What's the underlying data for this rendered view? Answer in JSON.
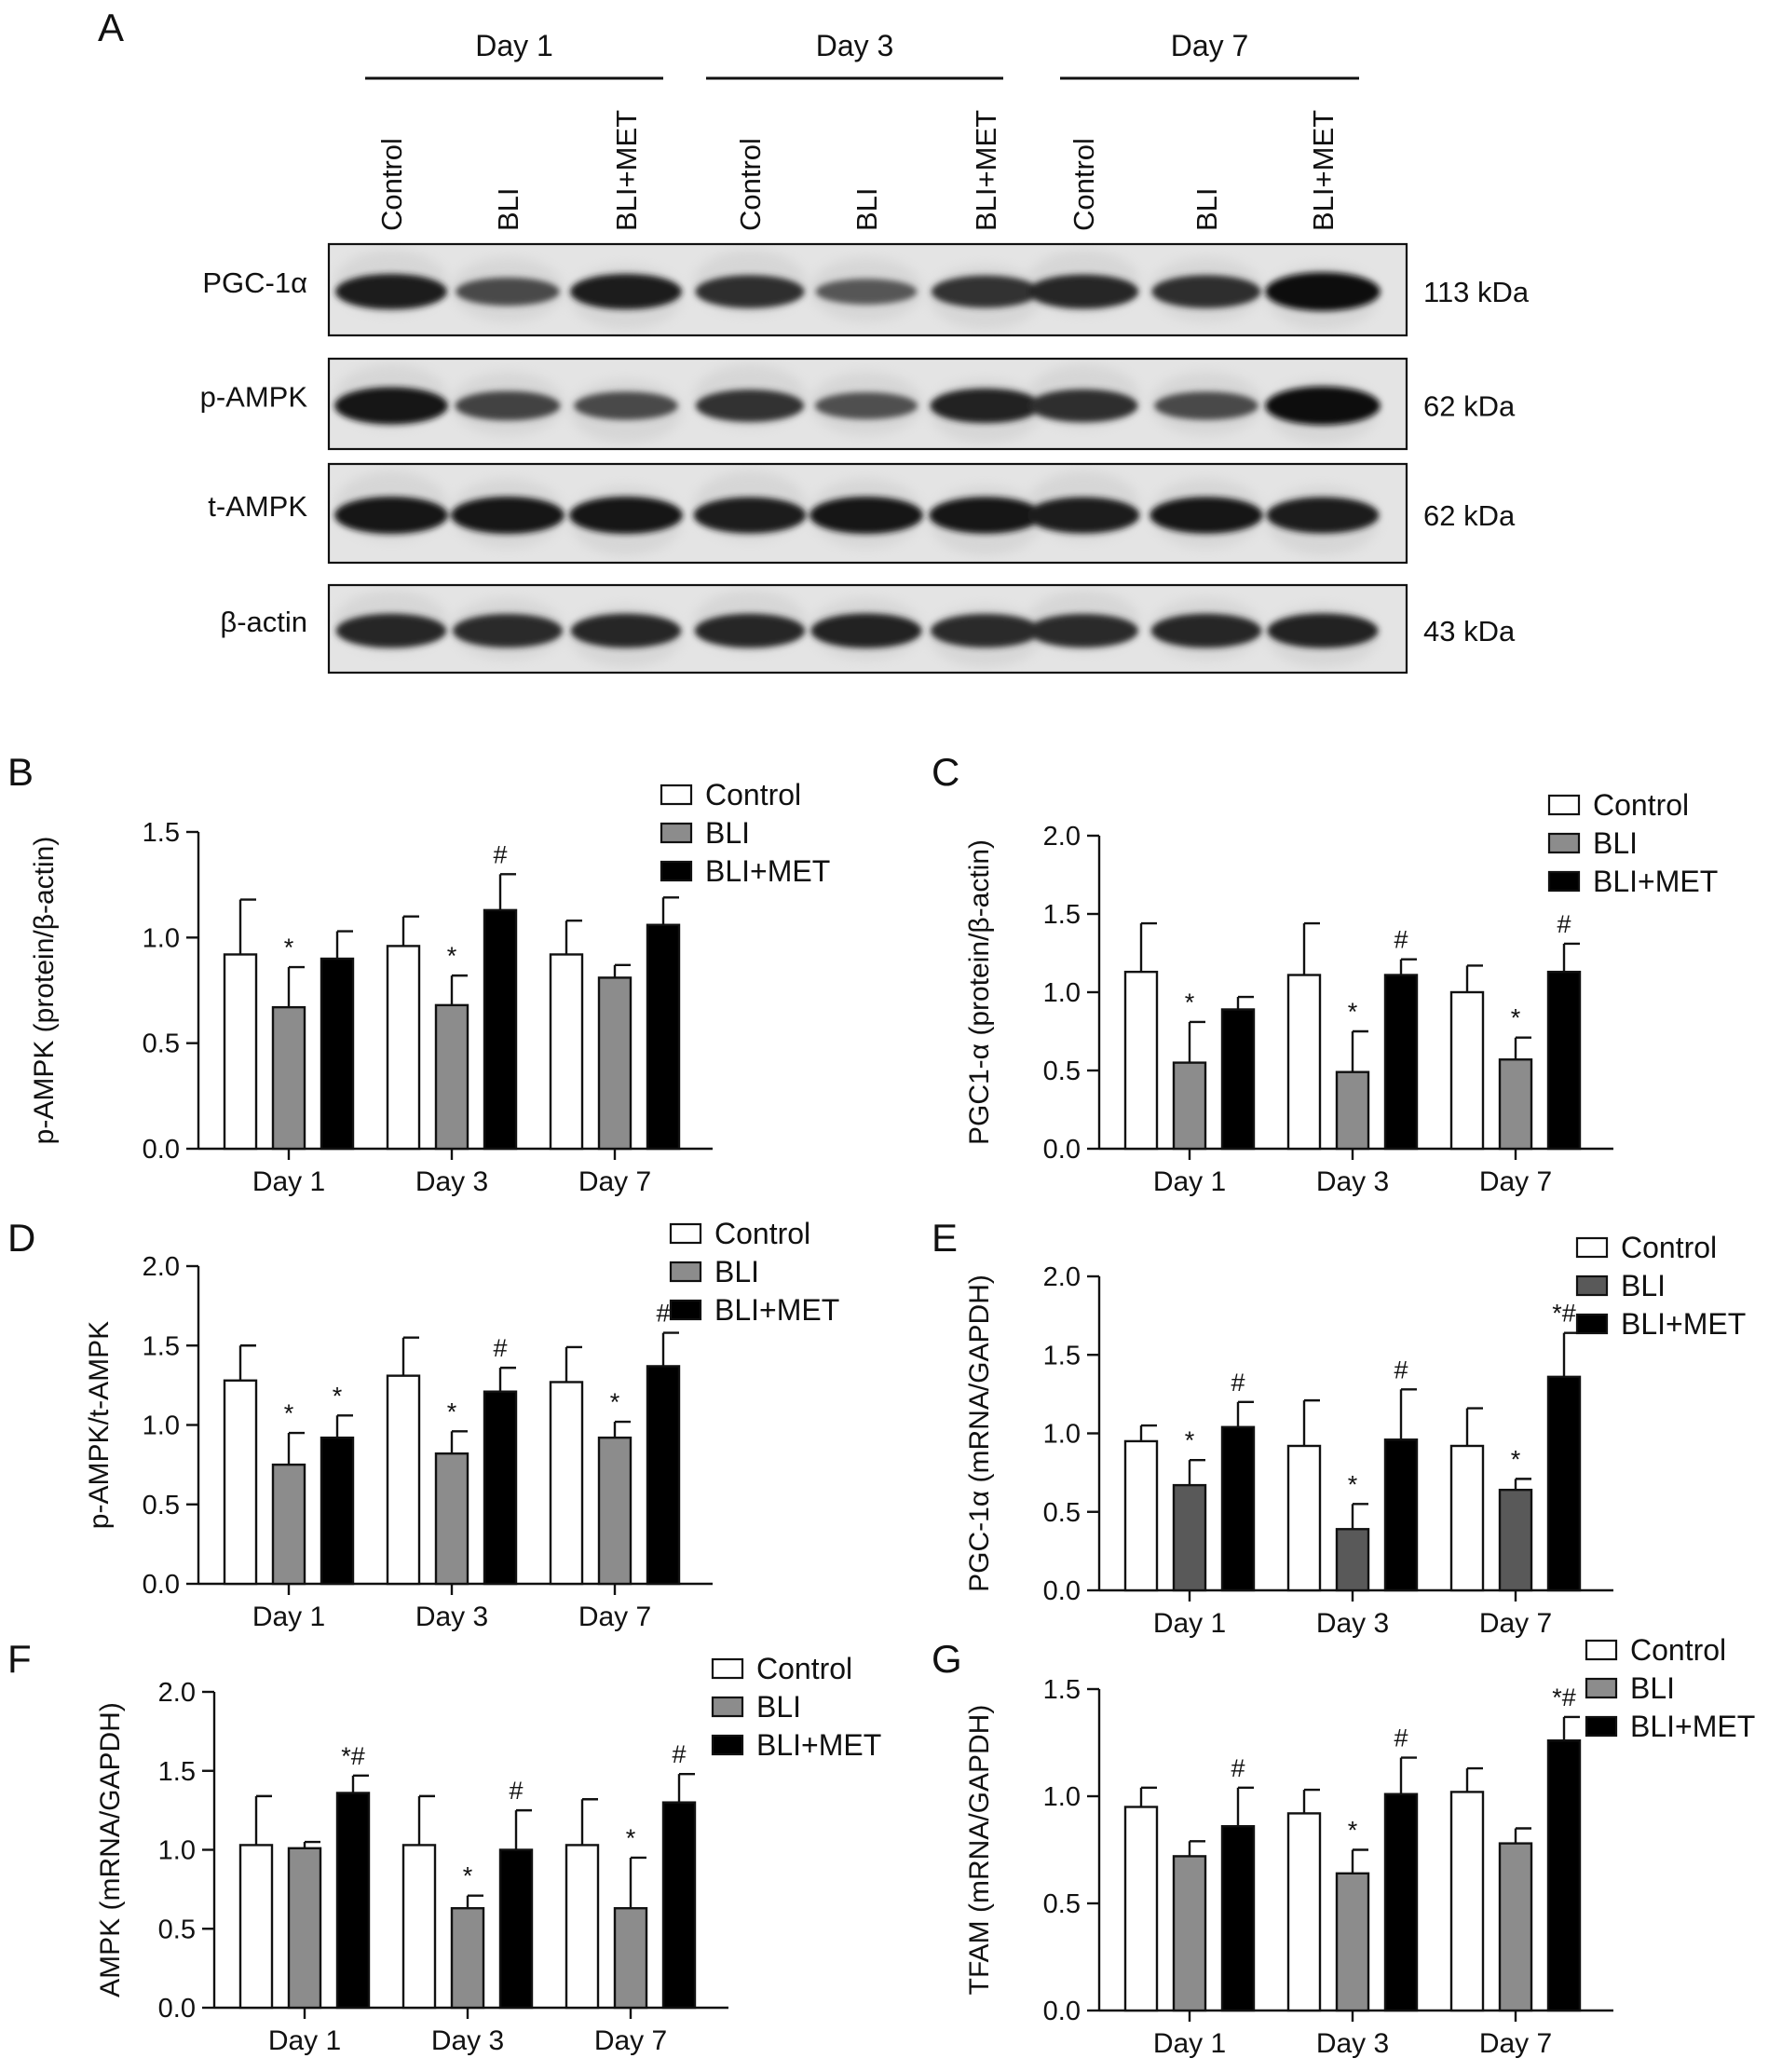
{
  "blot": {
    "panel_letter": "A",
    "groups": [
      {
        "label": "Day 1",
        "lanes": [
          "Control",
          "BLI",
          "BLI+MET"
        ]
      },
      {
        "label": "Day 3",
        "lanes": [
          "Control",
          "BLI",
          "BLI+MET"
        ]
      },
      {
        "label": "Day 7",
        "lanes": [
          "Control",
          "BLI",
          "BLI+MET"
        ]
      }
    ],
    "rows": [
      {
        "protein": "PGC-1α",
        "size": "113 kDa",
        "band_intensity": [
          0.85,
          0.55,
          0.85,
          0.75,
          0.45,
          0.72,
          0.8,
          0.75,
          0.98
        ]
      },
      {
        "protein": "p-AMPK",
        "size": "62 kDa",
        "band_intensity": [
          0.92,
          0.6,
          0.55,
          0.72,
          0.5,
          0.82,
          0.75,
          0.55,
          0.98
        ]
      },
      {
        "protein": "t-AMPK",
        "size": "62 kDa",
        "band_intensity": [
          0.92,
          0.92,
          0.92,
          0.88,
          0.92,
          0.9,
          0.88,
          0.9,
          0.88
        ]
      },
      {
        "protein": "β-actin",
        "size": "43 kDa",
        "band_intensity": [
          0.8,
          0.78,
          0.8,
          0.8,
          0.82,
          0.78,
          0.78,
          0.8,
          0.82
        ]
      }
    ]
  },
  "legend_labels": [
    "Control",
    "BLI",
    "BLI+MET"
  ],
  "colors": {
    "control": "#ffffff",
    "bli": "#8c8c8c",
    "bli_dark": "#595959",
    "bli_met": "#000000",
    "axis": "#111111"
  },
  "chart_data": [
    {
      "panel": "B",
      "type": "bar",
      "ylabel": "p-AMPK (protein/β-actin)",
      "categories": [
        "Day 1",
        "Day 3",
        "Day 7"
      ],
      "ylim": [
        0,
        1.5
      ],
      "yticks": [
        "0.0",
        "0.5",
        "1.0",
        "1.5"
      ],
      "legend": "right",
      "series": [
        {
          "name": "Control",
          "values": [
            0.92,
            0.96,
            0.92
          ],
          "errors": [
            0.26,
            0.14,
            0.16
          ],
          "marks": [
            "",
            "",
            ""
          ]
        },
        {
          "name": "BLI",
          "values": [
            0.67,
            0.68,
            0.81
          ],
          "errors": [
            0.19,
            0.14,
            0.06
          ],
          "marks": [
            "*",
            "*",
            ""
          ]
        },
        {
          "name": "BLI+MET",
          "values": [
            0.9,
            1.13,
            1.06
          ],
          "errors": [
            0.13,
            0.17,
            0.13
          ],
          "marks": [
            "",
            "#",
            ""
          ]
        }
      ]
    },
    {
      "panel": "C",
      "type": "bar",
      "ylabel": "PGC1-α (protein/β-actin)",
      "categories": [
        "Day 1",
        "Day 3",
        "Day 7"
      ],
      "ylim": [
        0,
        2.0
      ],
      "yticks": [
        "0.0",
        "0.5",
        "1.0",
        "1.5",
        "2.0"
      ],
      "legend": "right",
      "series": [
        {
          "name": "Control",
          "values": [
            1.13,
            1.11,
            1.0
          ],
          "errors": [
            0.31,
            0.33,
            0.17
          ],
          "marks": [
            "",
            "",
            ""
          ]
        },
        {
          "name": "BLI",
          "values": [
            0.55,
            0.49,
            0.57
          ],
          "errors": [
            0.26,
            0.26,
            0.14
          ],
          "marks": [
            "*",
            "*",
            "*"
          ]
        },
        {
          "name": "BLI+MET",
          "values": [
            0.89,
            1.11,
            1.13
          ],
          "errors": [
            0.08,
            0.1,
            0.18
          ],
          "marks": [
            "",
            "#",
            "#"
          ]
        }
      ]
    },
    {
      "panel": "D",
      "type": "bar",
      "ylabel": "p-AMPK/t-AMPK",
      "categories": [
        "Day 1",
        "Day 3",
        "Day 7"
      ],
      "ylim": [
        0,
        2.0
      ],
      "yticks": [
        "0.0",
        "0.5",
        "1.0",
        "1.5",
        "2.0"
      ],
      "legend": "right",
      "series": [
        {
          "name": "Control",
          "values": [
            1.28,
            1.31,
            1.27
          ],
          "errors": [
            0.22,
            0.24,
            0.22
          ],
          "marks": [
            "",
            "",
            ""
          ]
        },
        {
          "name": "BLI",
          "values": [
            0.75,
            0.82,
            0.92
          ],
          "errors": [
            0.2,
            0.14,
            0.1
          ],
          "marks": [
            "*",
            "*",
            "*"
          ]
        },
        {
          "name": "BLI+MET",
          "values": [
            0.92,
            1.21,
            1.37
          ],
          "errors": [
            0.14,
            0.15,
            0.21
          ],
          "marks": [
            "*",
            "#",
            "#"
          ]
        }
      ]
    },
    {
      "panel": "E",
      "type": "bar",
      "ylabel": "PGC-1α (mRNA/GAPDH)",
      "categories": [
        "Day 1",
        "Day 3",
        "Day 7"
      ],
      "ylim": [
        0,
        2.0
      ],
      "yticks": [
        "0.0",
        "0.5",
        "1.0",
        "1.5",
        "2.0"
      ],
      "legend": "right",
      "series": [
        {
          "name": "Control",
          "values": [
            0.95,
            0.92,
            0.92
          ],
          "errors": [
            0.1,
            0.29,
            0.24
          ],
          "marks": [
            "",
            "",
            ""
          ]
        },
        {
          "name": "BLI",
          "values": [
            0.67,
            0.39,
            0.64
          ],
          "errors": [
            0.16,
            0.16,
            0.07
          ],
          "marks": [
            "*",
            "*",
            "*"
          ]
        },
        {
          "name": "BLI+MET",
          "values": [
            1.04,
            0.96,
            1.36
          ],
          "errors": [
            0.16,
            0.32,
            0.28
          ],
          "marks": [
            "#",
            "#",
            "*#"
          ]
        }
      ]
    },
    {
      "panel": "F",
      "type": "bar",
      "ylabel": "AMPK (mRNA/GAPDH)",
      "categories": [
        "Day 1",
        "Day 3",
        "Day 7"
      ],
      "ylim": [
        0,
        2.0
      ],
      "yticks": [
        "0.0",
        "0.5",
        "1.0",
        "1.5",
        "2.0"
      ],
      "legend": "right",
      "series": [
        {
          "name": "Control",
          "values": [
            1.03,
            1.03,
            1.03
          ],
          "errors": [
            0.31,
            0.31,
            0.29
          ],
          "marks": [
            "",
            "",
            ""
          ]
        },
        {
          "name": "BLI",
          "values": [
            1.01,
            0.63,
            0.63
          ],
          "errors": [
            0.04,
            0.08,
            0.32
          ],
          "marks": [
            "",
            "*",
            "*"
          ]
        },
        {
          "name": "BLI+MET",
          "values": [
            1.36,
            1.0,
            1.3
          ],
          "errors": [
            0.11,
            0.25,
            0.18
          ],
          "marks": [
            "*#",
            "#",
            "#"
          ]
        }
      ]
    },
    {
      "panel": "G",
      "type": "bar",
      "ylabel": "TFAM (mRNA/GAPDH)",
      "categories": [
        "Day 1",
        "Day 3",
        "Day 7"
      ],
      "ylim": [
        0,
        1.5
      ],
      "yticks": [
        "0.0",
        "0.5",
        "1.0",
        "1.5"
      ],
      "legend": "right",
      "series": [
        {
          "name": "Control",
          "values": [
            0.95,
            0.92,
            1.02
          ],
          "errors": [
            0.09,
            0.11,
            0.11
          ],
          "marks": [
            "",
            "",
            ""
          ]
        },
        {
          "name": "BLI",
          "values": [
            0.72,
            0.64,
            0.78
          ],
          "errors": [
            0.07,
            0.11,
            0.07
          ],
          "marks": [
            "",
            "*",
            ""
          ]
        },
        {
          "name": "BLI+MET",
          "values": [
            0.86,
            1.01,
            1.26
          ],
          "errors": [
            0.18,
            0.17,
            0.11
          ],
          "marks": [
            "#",
            "#",
            "*#"
          ]
        }
      ]
    }
  ]
}
